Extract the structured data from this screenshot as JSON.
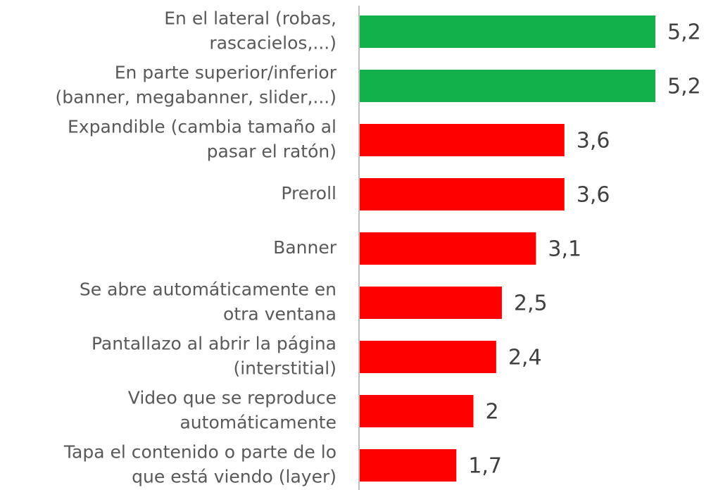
{
  "chart_data": {
    "type": "barh",
    "categories": [
      [
        "En el lateral (robas,",
        "rascacielos,...)"
      ],
      [
        "En parte superior/inferior",
        "(banner, megabanner, slider,...)"
      ],
      [
        "Expandible (cambia tamaño al",
        "pasar el ratón)"
      ],
      [
        "Preroll"
      ],
      [
        "Banner"
      ],
      [
        "Se abre automáticamente en",
        "otra ventana"
      ],
      [
        "Pantallazo al abrir la página",
        "(interstitial)"
      ],
      [
        "Video que se reproduce",
        "automáticamente"
      ],
      [
        "Tapa el contenido o parte de lo",
        "que está viendo (layer)"
      ]
    ],
    "values": [
      5.2,
      5.2,
      3.6,
      3.6,
      3.1,
      2.5,
      2.4,
      2,
      1.7
    ],
    "value_labels": [
      "5,2",
      "5,2",
      "3,6",
      "3,6",
      "3,1",
      "2,5",
      "2,4",
      "2",
      "1,7"
    ],
    "colors": [
      "#12b14b",
      "#12b14b",
      "#ff0000",
      "#ff0000",
      "#ff0000",
      "#ff0000",
      "#ff0000",
      "#ff0000",
      "#ff0000"
    ]
  }
}
